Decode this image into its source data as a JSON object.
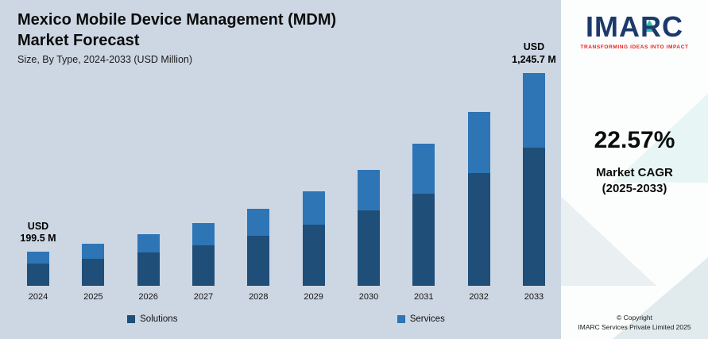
{
  "header": {
    "title_line1": "Mexico Mobile Device Management (MDM)",
    "title_line2": "Market Forecast",
    "subtitle": "Size, By Type, 2024-2033 (USD Million)"
  },
  "chart_data": {
    "type": "bar",
    "stacked": true,
    "title": "Mexico Mobile Device Management (MDM) Market Forecast",
    "subtitle": "Size, By Type, 2024-2033 (USD Million)",
    "categories": [
      "2024",
      "2025",
      "2026",
      "2027",
      "2028",
      "2029",
      "2030",
      "2031",
      "2032",
      "2033"
    ],
    "series": [
      {
        "name": "Solutions",
        "color": "#1f4e79",
        "values": [
          130,
          159,
          195,
          239,
          293,
          359,
          440,
          539,
          660,
          810
        ]
      },
      {
        "name": "Services",
        "color": "#2e75b6",
        "values": [
          69.5,
          85.5,
          104.7,
          128.3,
          157.2,
          192.8,
          236.4,
          290.1,
          356.2,
          435.7
        ]
      }
    ],
    "totals": [
      199.5,
      244.5,
      299.7,
      367.3,
      450.2,
      551.8,
      676.4,
      829.1,
      1016.2,
      1245.7
    ],
    "annotations": [
      {
        "category": "2024",
        "line1": "USD",
        "line2": "199.5 M"
      },
      {
        "category": "2033",
        "line1": "USD",
        "line2": "1,245.7 M"
      }
    ],
    "ylim": [
      0,
      1300
    ],
    "grid": false,
    "legend_position": "bottom"
  },
  "sidebar": {
    "logo_text": "IMARC",
    "tagline": "TRANSFORMING IDEAS INTO IMPACT",
    "cagr_value": "22.57%",
    "cagr_label_line1": "Market CAGR",
    "cagr_label_line2": "(2025-2033)",
    "copyright_line1": "© Copyright",
    "copyright_line2": "IMARC Services Private Limited 2025"
  },
  "colors": {
    "solutions": "#1f4e79",
    "services": "#2e75b6",
    "background": "#cdd7e3",
    "logo_navy": "#1b3a6b",
    "logo_teal": "#29b9b4",
    "tagline_red": "#e8211d"
  }
}
